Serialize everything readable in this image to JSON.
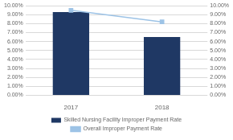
{
  "chart_data": {
    "type": "bar",
    "categories": [
      "2017",
      "2018"
    ],
    "series": [
      {
        "name": "Skilled Nursing Facility Improper Payment Rate",
        "type": "bar",
        "color": "#1f3864",
        "values": [
          0.093,
          0.065
        ]
      },
      {
        "name": "Overall Improper Payment Rate",
        "type": "line",
        "color": "#9dc3e6",
        "marker": "square",
        "axis": "y2",
        "values": [
          0.095,
          0.082
        ]
      }
    ],
    "ylim": [
      0,
      0.1
    ],
    "yticks": [
      {
        "value": 0.0,
        "label": "0.00%"
      },
      {
        "value": 0.01,
        "label": "1.00%"
      },
      {
        "value": 0.02,
        "label": "2.00%"
      },
      {
        "value": 0.03,
        "label": "3.00%"
      },
      {
        "value": 0.04,
        "label": "4.00%"
      },
      {
        "value": 0.05,
        "label": "5.00%"
      },
      {
        "value": 0.06,
        "label": "6.00%"
      },
      {
        "value": 0.07,
        "label": "7.00%"
      },
      {
        "value": 0.08,
        "label": "8.00%"
      },
      {
        "value": 0.09,
        "label": "9.00%"
      },
      {
        "value": 0.1,
        "label": "10.00%"
      }
    ],
    "y2lim": [
      0,
      0.1
    ],
    "y2ticks": [
      {
        "value": 0.0,
        "label": "0.00%"
      },
      {
        "value": 0.01,
        "label": "1.00%"
      },
      {
        "value": 0.02,
        "label": "2.00%"
      },
      {
        "value": 0.03,
        "label": "3.00%"
      },
      {
        "value": 0.04,
        "label": "4.00%"
      },
      {
        "value": 0.05,
        "label": "5.00%"
      },
      {
        "value": 0.06,
        "label": "6.00%"
      },
      {
        "value": 0.07,
        "label": "7.00%"
      },
      {
        "value": 0.08,
        "label": "8.00%"
      },
      {
        "value": 0.09,
        "label": "9.00%"
      },
      {
        "value": 0.1,
        "label": "10.00%"
      }
    ],
    "grid": true,
    "legend": "bottom"
  }
}
